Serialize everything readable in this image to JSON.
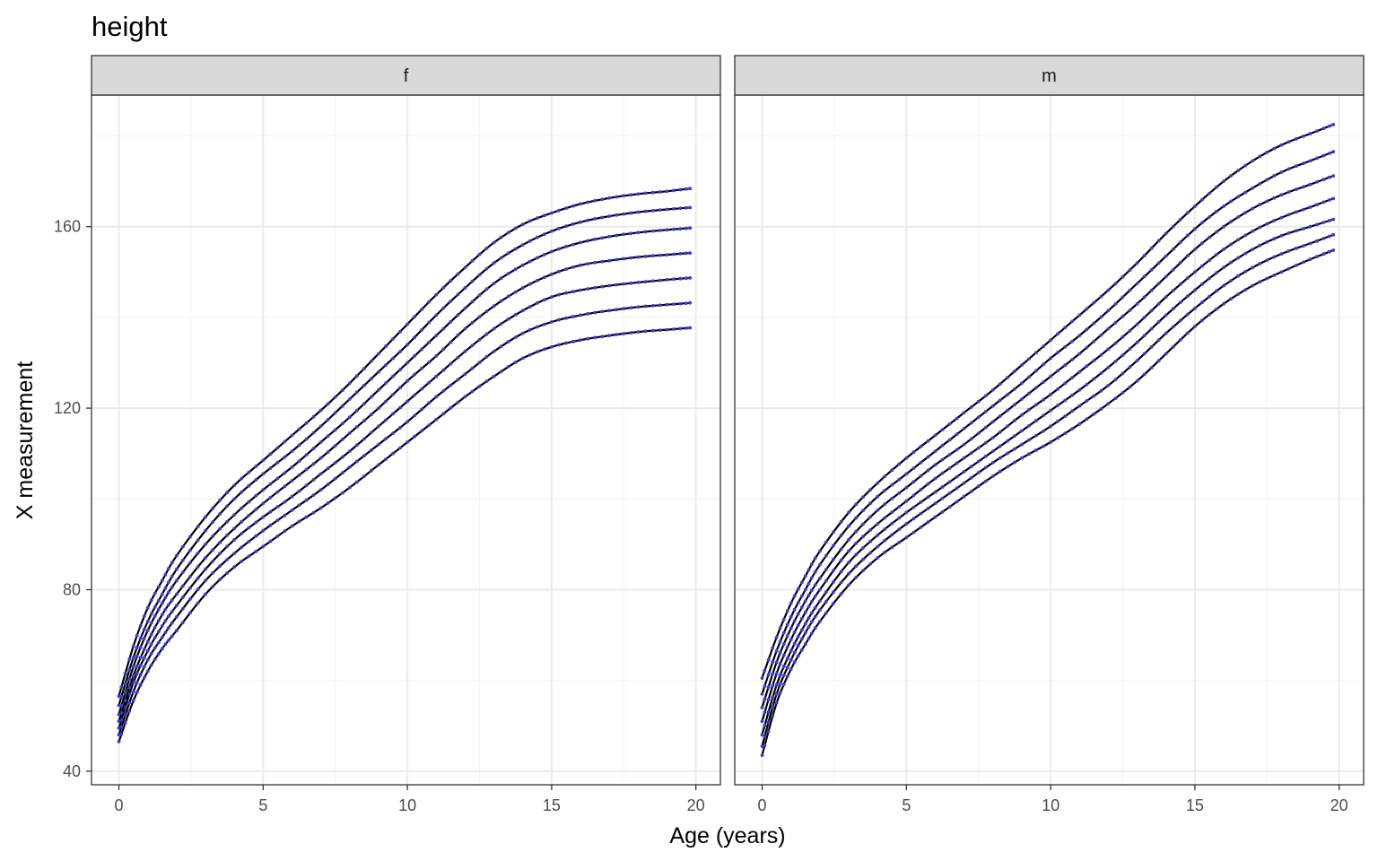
{
  "chart_data": {
    "type": "line",
    "title": "height",
    "xlabel": "Age (years)",
    "ylabel": "X measurement",
    "xlim": [
      -0.95,
      20.85
    ],
    "ylim": [
      37.0,
      189.0
    ],
    "x_ticks": [
      0,
      5,
      10,
      15,
      20
    ],
    "y_ticks": [
      40,
      80,
      120,
      160
    ],
    "grid": true,
    "legend": "none",
    "line_color": "#000000",
    "point_color": "#3b3bd6",
    "panels": [
      {
        "facet": "f",
        "series": [
          {
            "x": [
              0,
              0.5,
              1,
              1.5,
              2,
              3,
              4,
              5,
              6,
              7,
              8,
              9,
              10,
              11,
              12,
              13,
              14,
              15,
              16,
              17,
              18,
              19,
              19.8
            ],
            "y": [
              46.5,
              55.5,
              62,
              67,
              71,
              79,
              85,
              89.5,
              94,
              98,
              102.5,
              107.5,
              112.5,
              117.5,
              122.5,
              127,
              131,
              133.5,
              135,
              136,
              136.8,
              137.3,
              137.7
            ]
          },
          {
            "x": [
              0,
              0.5,
              1,
              1.5,
              2,
              3,
              4,
              5,
              6,
              7,
              8,
              9,
              10,
              11,
              12,
              13,
              14,
              15,
              16,
              17,
              18,
              19,
              19.8
            ],
            "y": [
              48,
              57.5,
              64.5,
              69.5,
              74,
              82,
              88,
              93,
              97.5,
              102,
              107,
              112,
              117,
              122.5,
              127.5,
              132.5,
              136.5,
              139,
              140.5,
              141.5,
              142.3,
              142.8,
              143.2
            ]
          },
          {
            "x": [
              0,
              0.5,
              1,
              1.5,
              2,
              3,
              4,
              5,
              6,
              7,
              8,
              9,
              10,
              11,
              12,
              13,
              14,
              15,
              16,
              17,
              18,
              19,
              19.8
            ],
            "y": [
              49.5,
              59.5,
              66.5,
              72,
              76.5,
              84.5,
              91,
              96,
              100.5,
              105.5,
              110.5,
              116,
              121.5,
              127,
              132.5,
              137.5,
              141.5,
              144.5,
              146,
              147,
              147.7,
              148.3,
              148.7
            ]
          },
          {
            "x": [
              0,
              0.5,
              1,
              1.5,
              2,
              3,
              4,
              5,
              6,
              7,
              8,
              9,
              10,
              11,
              12,
              13,
              14,
              15,
              16,
              17,
              18,
              19,
              19.8
            ],
            "y": [
              51,
              61,
              68.5,
              74.5,
              79,
              87,
              93.5,
              99,
              104,
              109,
              114.5,
              120,
              126,
              131.5,
              137.5,
              142.5,
              146.5,
              149.5,
              151.5,
              152.5,
              153.3,
              153.8,
              154.2
            ]
          },
          {
            "x": [
              0,
              0.5,
              1,
              1.5,
              2,
              3,
              4,
              5,
              6,
              7,
              8,
              9,
              10,
              11,
              12,
              13,
              14,
              15,
              16,
              17,
              18,
              19,
              19.8
            ],
            "y": [
              52.5,
              63,
              71,
              77,
              82,
              90,
              96.5,
              102,
              107,
              112.5,
              118,
              124,
              130,
              136,
              142,
              147.5,
              151.5,
              154.5,
              156.5,
              157.8,
              158.7,
              159.3,
              159.7
            ]
          },
          {
            "x": [
              0,
              0.5,
              1,
              1.5,
              2,
              3,
              4,
              5,
              6,
              7,
              8,
              9,
              10,
              11,
              12,
              13,
              14,
              15,
              16,
              17,
              18,
              19,
              19.8
            ],
            "y": [
              54.5,
              65,
              73,
              79,
              84.5,
              93,
              100,
              105.5,
              110.5,
              116,
              122,
              128,
              134,
              140.5,
              146.5,
              152,
              156,
              159,
              161,
              162.3,
              163.2,
              163.8,
              164.2
            ]
          },
          {
            "x": [
              0,
              0.5,
              1,
              1.5,
              2,
              3,
              4,
              5,
              6,
              7,
              8,
              9,
              10,
              11,
              12,
              13,
              14,
              15,
              16,
              17,
              18,
              19,
              19.8
            ],
            "y": [
              56.5,
              67.5,
              76,
              82,
              87.5,
              96,
              103,
              108.5,
              114,
              119.5,
              125.5,
              132,
              138.5,
              145,
              151,
              156.5,
              160.5,
              163,
              165,
              166.3,
              167.2,
              167.8,
              168.4
            ]
          }
        ]
      },
      {
        "facet": "m",
        "series": [
          {
            "x": [
              0,
              0.5,
              1,
              1.5,
              2,
              3,
              4,
              5,
              6,
              7,
              8,
              9,
              10,
              11,
              12,
              13,
              14,
              15,
              16,
              17,
              18,
              19,
              19.8
            ],
            "y": [
              43.5,
              55,
              62.5,
              68,
              73,
              81,
              87,
              91.5,
              96,
              100.5,
              105,
              109,
              112.5,
              116.5,
              121,
              126,
              132,
              138,
              143,
              147,
              150,
              152.8,
              154.8
            ]
          },
          {
            "x": [
              0,
              0.5,
              1,
              1.5,
              2,
              3,
              4,
              5,
              6,
              7,
              8,
              9,
              10,
              11,
              12,
              13,
              14,
              15,
              16,
              17,
              18,
              19,
              19.8
            ],
            "y": [
              45.5,
              57,
              64.5,
              70.5,
              75.5,
              83.5,
              89.5,
              94.5,
              99,
              103.5,
              108,
              112,
              116,
              120.5,
              125,
              130.5,
              136.5,
              142,
              147,
              151,
              154,
              156.3,
              158.2
            ]
          },
          {
            "x": [
              0,
              0.5,
              1,
              1.5,
              2,
              3,
              4,
              5,
              6,
              7,
              8,
              9,
              10,
              11,
              12,
              13,
              14,
              15,
              16,
              17,
              18,
              19,
              19.8
            ],
            "y": [
              48,
              59,
              66.5,
              72.5,
              77.5,
              86,
              92,
              97,
              101.5,
              106,
              110.5,
              115,
              119.5,
              124,
              129,
              134.5,
              140.5,
              146,
              151,
              155,
              158,
              160,
              161.6
            ]
          },
          {
            "x": [
              0,
              0.5,
              1,
              1.5,
              2,
              3,
              4,
              5,
              6,
              7,
              8,
              9,
              10,
              11,
              12,
              13,
              14,
              15,
              16,
              17,
              18,
              19,
              19.8
            ],
            "y": [
              51,
              61.5,
              69,
              75,
              80,
              88.5,
              94.5,
              99.5,
              104.5,
              109,
              113.5,
              118.5,
              123,
              128,
              133,
              138.5,
              144.5,
              150,
              155,
              159,
              162,
              164.3,
              166.2
            ]
          },
          {
            "x": [
              0,
              0.5,
              1,
              1.5,
              2,
              3,
              4,
              5,
              6,
              7,
              8,
              9,
              10,
              11,
              12,
              13,
              14,
              15,
              16,
              17,
              18,
              19,
              19.8
            ],
            "y": [
              54,
              64,
              71.5,
              77.5,
              82.5,
              91,
              97.5,
              102.5,
              107.5,
              112,
              117,
              122,
              127,
              132,
              137.5,
              143,
              149,
              155,
              160,
              164,
              167,
              169.3,
              171.2
            ]
          },
          {
            "x": [
              0,
              0.5,
              1,
              1.5,
              2,
              3,
              4,
              5,
              6,
              7,
              8,
              9,
              10,
              11,
              12,
              13,
              14,
              15,
              16,
              17,
              18,
              19,
              19.8
            ],
            "y": [
              57,
              66.5,
              74,
              80,
              85.5,
              94,
              100.5,
              105.5,
              110.5,
              115.5,
              120.5,
              125.5,
              131,
              136,
              141.5,
              147.5,
              153.5,
              159.5,
              164.5,
              168.5,
              172,
              174.5,
              176.5
            ]
          },
          {
            "x": [
              0,
              0.5,
              1,
              1.5,
              2,
              3,
              4,
              5,
              6,
              7,
              8,
              9,
              10,
              11,
              12,
              13,
              14,
              15,
              16,
              17,
              18,
              19,
              19.8
            ],
            "y": [
              60.5,
              69.5,
              77,
              83,
              88.5,
              97,
              103.5,
              109,
              114,
              119,
              124,
              129.5,
              135,
              140.5,
              146,
              152,
              158.5,
              164.5,
              170,
              174.5,
              178,
              180.5,
              182.5
            ]
          }
        ]
      }
    ]
  }
}
